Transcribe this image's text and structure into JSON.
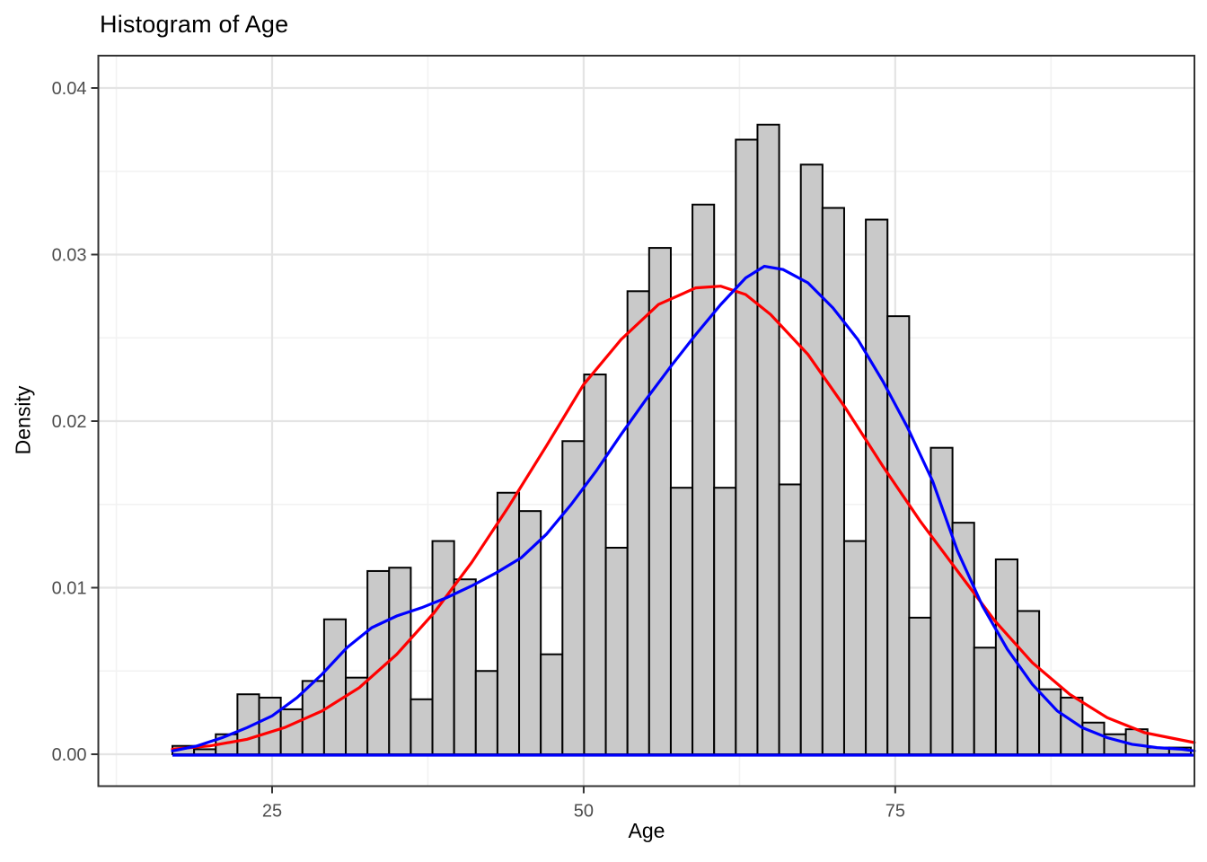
{
  "chart_data": {
    "type": "histogram",
    "title": "Histogram of Age",
    "xlabel": "Age",
    "ylabel": "Density",
    "x_ticks": [
      25,
      50,
      75
    ],
    "x_minor_ticks": [
      12.5,
      37.5,
      62.5,
      87.5
    ],
    "y_ticks": [
      0.0,
      0.01,
      0.02,
      0.03,
      0.04
    ],
    "y_minor_ticks": [
      0.005,
      0.015,
      0.025,
      0.035
    ],
    "xlim": [
      11.0,
      99.0
    ],
    "ylim": [
      -0.0019,
      0.0419
    ],
    "grid": "on",
    "legend": "none",
    "colors": {
      "bar_fill": "#c9c9c9",
      "bar_stroke": "#000000",
      "normal_curve": "#ff0000",
      "kde_curve": "#0000ff",
      "grid_major": "#e4e4e4",
      "grid_minor": "#f2f2f2",
      "panel_border": "#333333",
      "tick_text": "#4d4d4d"
    },
    "bins": {
      "start_age": 17.0,
      "bin_width": 1.738,
      "densities": [
        0.0005,
        0.0003,
        0.0012,
        0.0036,
        0.0034,
        0.0027,
        0.0044,
        0.0081,
        0.0046,
        0.011,
        0.0112,
        0.0033,
        0.0128,
        0.0105,
        0.005,
        0.0157,
        0.0146,
        0.006,
        0.0188,
        0.0228,
        0.0124,
        0.0278,
        0.0304,
        0.016,
        0.033,
        0.016,
        0.0369,
        0.0378,
        0.0162,
        0.0354,
        0.0328,
        0.0128,
        0.0321,
        0.0263,
        0.0082,
        0.0184,
        0.0139,
        0.0064,
        0.0117,
        0.0086,
        0.0039,
        0.0034,
        0.0019,
        0.0012,
        0.0015,
        0.0004,
        0.0004
      ]
    },
    "series": [
      {
        "name": "normal-curve",
        "color": "#ff0000",
        "points": [
          [
            17,
            0.0003
          ],
          [
            20,
            0.0005
          ],
          [
            23,
            0.0009
          ],
          [
            26,
            0.0016
          ],
          [
            29,
            0.0026
          ],
          [
            32,
            0.004
          ],
          [
            35,
            0.006
          ],
          [
            38,
            0.0085
          ],
          [
            41,
            0.0115
          ],
          [
            44,
            0.0149
          ],
          [
            47,
            0.0185
          ],
          [
            50,
            0.0222
          ],
          [
            53,
            0.0249
          ],
          [
            56,
            0.027
          ],
          [
            59,
            0.028
          ],
          [
            61,
            0.0281
          ],
          [
            63,
            0.0276
          ],
          [
            65,
            0.0264
          ],
          [
            68,
            0.024
          ],
          [
            71,
            0.0208
          ],
          [
            74,
            0.0173
          ],
          [
            77,
            0.014
          ],
          [
            80,
            0.011
          ],
          [
            83,
            0.008
          ],
          [
            86,
            0.0055
          ],
          [
            89,
            0.0036
          ],
          [
            92,
            0.0022
          ],
          [
            95,
            0.0013
          ],
          [
            97,
            0.001
          ],
          [
            99,
            0.0007
          ]
        ]
      },
      {
        "name": "kde-curve",
        "color": "#0000ff",
        "points": [
          [
            17,
            0.0002
          ],
          [
            19,
            0.0005
          ],
          [
            21,
            0.001
          ],
          [
            23,
            0.0016
          ],
          [
            25,
            0.0023
          ],
          [
            27,
            0.0034
          ],
          [
            29,
            0.0048
          ],
          [
            31,
            0.0064
          ],
          [
            33,
            0.0076
          ],
          [
            35,
            0.0083
          ],
          [
            37,
            0.0088
          ],
          [
            39,
            0.0094
          ],
          [
            41,
            0.0101
          ],
          [
            43,
            0.0109
          ],
          [
            45,
            0.0118
          ],
          [
            47,
            0.0132
          ],
          [
            49,
            0.015
          ],
          [
            51,
            0.017
          ],
          [
            53,
            0.0192
          ],
          [
            55,
            0.0213
          ],
          [
            57,
            0.0233
          ],
          [
            59,
            0.0252
          ],
          [
            61,
            0.027
          ],
          [
            63,
            0.0286
          ],
          [
            64.5,
            0.0293
          ],
          [
            66,
            0.0291
          ],
          [
            68,
            0.0283
          ],
          [
            70,
            0.0268
          ],
          [
            72,
            0.0249
          ],
          [
            74,
            0.0224
          ],
          [
            76,
            0.0196
          ],
          [
            78,
            0.0164
          ],
          [
            80,
            0.0122
          ],
          [
            82,
            0.0089
          ],
          [
            84,
            0.0063
          ],
          [
            86,
            0.0042
          ],
          [
            88,
            0.0026
          ],
          [
            90,
            0.0016
          ],
          [
            92,
            0.001
          ],
          [
            94,
            0.0006
          ],
          [
            96,
            0.0004
          ],
          [
            98,
            0.0003
          ],
          [
            99,
            0.0002
          ]
        ]
      }
    ],
    "zero_baseline": {
      "color": "#0000ff",
      "density": 0,
      "from_age": 17.0,
      "to_age": 99.0
    }
  }
}
